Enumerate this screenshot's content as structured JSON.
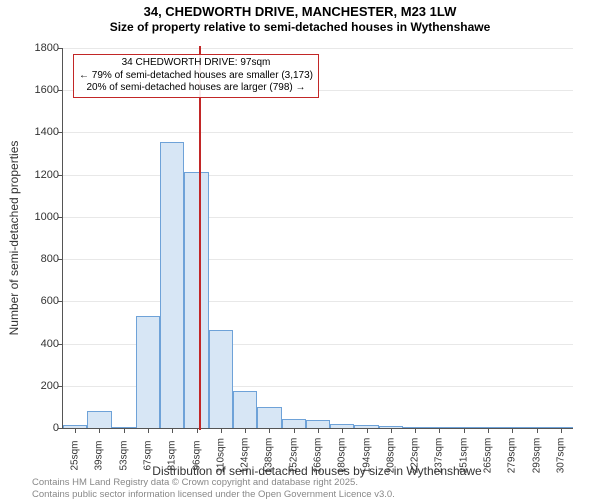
{
  "title": "34, CHEDWORTH DRIVE, MANCHESTER, M23 1LW",
  "subtitle": "Size of property relative to semi-detached houses in Wythenshawe",
  "y_axis": {
    "title": "Number of semi-detached properties",
    "min": 0,
    "max": 1800,
    "ticks": [
      0,
      200,
      400,
      600,
      800,
      1000,
      1200,
      1400,
      1600,
      1800
    ]
  },
  "x_axis": {
    "title": "Distribution of semi-detached houses by size in Wythenshawe",
    "labels": [
      "25sqm",
      "39sqm",
      "53sqm",
      "67sqm",
      "81sqm",
      "96sqm",
      "110sqm",
      "124sqm",
      "138sqm",
      "152sqm",
      "166sqm",
      "180sqm",
      "194sqm",
      "208sqm",
      "222sqm",
      "237sqm",
      "251sqm",
      "265sqm",
      "279sqm",
      "293sqm",
      "307sqm"
    ]
  },
  "bars": {
    "values": [
      12,
      82,
      4,
      530,
      1355,
      1215,
      465,
      176,
      98,
      44,
      39,
      18,
      16,
      8,
      4,
      2,
      1,
      0,
      1,
      0,
      1
    ],
    "fill": "#d7e6f5",
    "stroke": "#6ea2d8",
    "width_ratio": 1.0
  },
  "marker": {
    "position_index": 5.08,
    "color": "#c22727"
  },
  "annotation": {
    "lines": [
      "34 CHEDWORTH DRIVE: 97sqm",
      "← 79% of semi-detached houses are smaller (3,173)",
      "20% of semi-detached houses are larger (798) →"
    ],
    "border_color": "#c22727"
  },
  "footer": {
    "line1": "Contains HM Land Registry data © Crown copyright and database right 2025.",
    "line2": "Contains public sector information licensed under the Open Government Licence v3.0."
  },
  "colors": {
    "background": "#ffffff",
    "grid": "#e8e8e8",
    "axis": "#555555",
    "text": "#333333",
    "footer": "#888888"
  }
}
